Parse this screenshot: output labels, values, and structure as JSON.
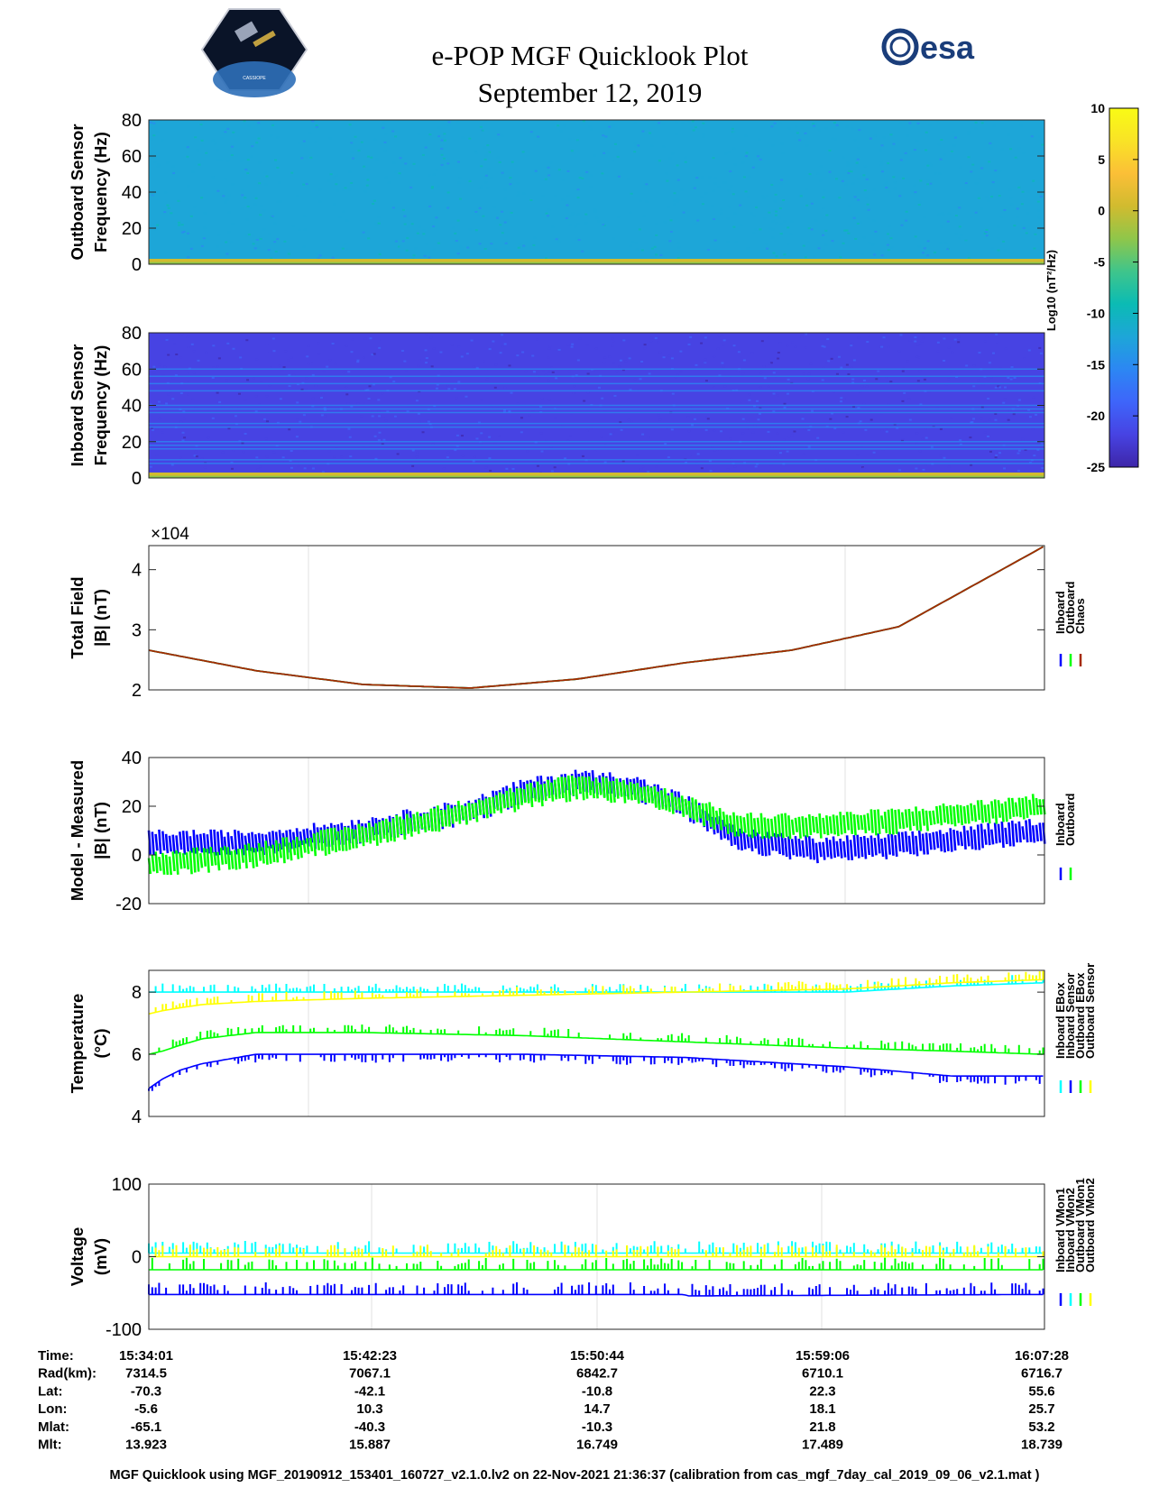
{
  "header": {
    "title": "e-POP MGF Quicklook Plot",
    "date": "September 12, 2019",
    "logo_right_text": "esa",
    "logo_left_caption": "CASSIOPE"
  },
  "colorbar": {
    "label_text": "Log10 (nT²/Hz)",
    "ticks": [
      10,
      5,
      0,
      -5,
      -10,
      -15,
      -20,
      -25
    ],
    "range": [
      -25,
      10
    ],
    "colormap": [
      "#3e26a8",
      "#4743e3",
      "#3e65fa",
      "#2c87f3",
      "#1da6d8",
      "#0bbbb4",
      "#3fc58b",
      "#8fc64a",
      "#d1bb2f",
      "#fbbf37",
      "#f9e326",
      "#f9fb15"
    ]
  },
  "footer": "MGF Quicklook using MGF_20190912_153401_160727_v2.1.0.lv2 on 22-Nov-2021 21:36:37 (calibration from cas_mgf_7day_cal_2019_09_06_v2.1.mat )",
  "ephemeris": {
    "rows": [
      {
        "label": "Time:",
        "values": [
          "15:34:01",
          "15:42:23",
          "15:50:44",
          "15:59:06",
          "16:07:28"
        ]
      },
      {
        "label": "Rad(km):",
        "values": [
          "7314.5",
          "7067.1",
          "6842.7",
          "6710.1",
          "6716.7"
        ]
      },
      {
        "label": "Lat:",
        "values": [
          "-70.3",
          "-42.1",
          "-10.8",
          "22.3",
          "55.6"
        ]
      },
      {
        "label": "Lon:",
        "values": [
          "-5.6",
          "10.3",
          "14.7",
          "18.1",
          "25.7"
        ]
      },
      {
        "label": "Mlat:",
        "values": [
          "-65.1",
          "-40.3",
          "-10.3",
          "21.8",
          "53.2"
        ]
      },
      {
        "label": "Mlt:",
        "values": [
          "13.923",
          "15.887",
          "16.749",
          "17.489",
          "18.739"
        ]
      }
    ]
  },
  "chart_data": [
    {
      "type": "heatmap",
      "id": "outboard-spectrogram",
      "ylabel": [
        "Outboard Sensor",
        "Frequency (Hz)"
      ],
      "yticks": [
        0,
        20,
        40,
        60,
        80
      ],
      "ylim": [
        0,
        80
      ],
      "base_level": -12,
      "low_band_level": 2,
      "lines_hz": []
    },
    {
      "type": "heatmap",
      "id": "inboard-spectrogram",
      "ylabel": [
        "Inboard Sensor",
        "Frequency (Hz)"
      ],
      "yticks": [
        0,
        20,
        40,
        60,
        80
      ],
      "ylim": [
        0,
        80
      ],
      "base_level": -21,
      "low_band_level": 2,
      "lines_hz": [
        8,
        10,
        16,
        18,
        20,
        28,
        30,
        36,
        38,
        40,
        48,
        52,
        56,
        60
      ]
    },
    {
      "type": "line",
      "id": "total-field",
      "ylabel": [
        "Total Field",
        "|B| (nT)"
      ],
      "multiplier": "×10^4",
      "yticks": [
        2,
        3,
        4
      ],
      "ylim": [
        2,
        4.4
      ],
      "x_minutes": [
        0,
        4,
        8,
        12,
        16,
        20,
        24,
        28,
        33.4
      ],
      "series": [
        {
          "name": "Inboard",
          "color": "#0000ff",
          "values": [
            2.66,
            2.32,
            2.09,
            2.03,
            2.18,
            2.45,
            2.66,
            3.05,
            4.38
          ]
        },
        {
          "name": "Outboard",
          "color": "#00ff00",
          "values": [
            2.66,
            2.32,
            2.09,
            2.03,
            2.18,
            2.45,
            2.66,
            3.05,
            4.38
          ]
        },
        {
          "name": "Chaos",
          "color": "#a52a00",
          "values": [
            2.66,
            2.32,
            2.09,
            2.03,
            2.18,
            2.45,
            2.66,
            3.05,
            4.38
          ]
        }
      ]
    },
    {
      "type": "line",
      "id": "model-minus-measured",
      "ylabel": [
        "Model - Measured",
        "|B| (nT)"
      ],
      "yticks": [
        -20,
        0,
        20,
        40
      ],
      "ylim": [
        -20,
        40
      ],
      "x_minutes": [
        0,
        4,
        8,
        12,
        14,
        16,
        18,
        20,
        22,
        25,
        28,
        33.4
      ],
      "series": [
        {
          "name": "Inboard",
          "color": "#0000ff",
          "spread": 8,
          "values": [
            5,
            5,
            10,
            18,
            26,
            30,
            28,
            20,
            6,
            2,
            4,
            10
          ]
        },
        {
          "name": "Outboard",
          "color": "#00ff00",
          "spread": 8,
          "values": [
            -4,
            0,
            8,
            18,
            24,
            28,
            26,
            20,
            12,
            12,
            14,
            20
          ]
        }
      ]
    },
    {
      "type": "line",
      "id": "temperature",
      "ylabel": [
        "Temperature",
        "(°C)"
      ],
      "yticks": [
        4,
        6,
        8
      ],
      "ylim": [
        4,
        8.7
      ],
      "x_minutes": [
        0,
        0.5,
        1.2,
        2,
        4,
        8,
        14,
        20,
        26,
        30,
        33.4
      ],
      "series": [
        {
          "name": "Inboard EBox",
          "color": "#00ffff",
          "values": [
            8.0,
            8.0,
            8.0,
            8.0,
            8.0,
            8.0,
            8.0,
            8.0,
            8.0,
            8.2,
            8.3
          ]
        },
        {
          "name": "Inboard Sensor",
          "color": "#0000ff",
          "values": [
            4.9,
            5.2,
            5.5,
            5.7,
            6.0,
            6.0,
            6.0,
            5.9,
            5.6,
            5.3,
            5.3
          ]
        },
        {
          "name": "Outboard EBox",
          "color": "#00ff00",
          "values": [
            6.0,
            6.1,
            6.3,
            6.5,
            6.7,
            6.7,
            6.6,
            6.4,
            6.2,
            6.1,
            6.0
          ]
        },
        {
          "name": "Outboard Sensor",
          "color": "#ffff00",
          "values": [
            7.3,
            7.4,
            7.5,
            7.6,
            7.7,
            7.8,
            7.9,
            8.0,
            8.1,
            8.3,
            8.4
          ]
        }
      ]
    },
    {
      "type": "line",
      "id": "voltage",
      "ylabel": [
        "Voltage",
        "(mV)"
      ],
      "yticks": [
        -100,
        0,
        100
      ],
      "ylim": [
        -100,
        100
      ],
      "x_minutes": [
        0,
        20,
        20.1,
        33.4
      ],
      "series": [
        {
          "name": "Inboard VMon1",
          "color": "#0000ff",
          "values": [
            -52,
            -52,
            -54,
            -52
          ]
        },
        {
          "name": "Inboard VMon2",
          "color": "#00ffff",
          "values": [
            5,
            5,
            5,
            5
          ]
        },
        {
          "name": "Outboard VMon1",
          "color": "#00ff00",
          "values": [
            -18,
            -18,
            -18,
            -18
          ]
        },
        {
          "name": "Outboard VMon2",
          "color": "#ffff00",
          "values": [
            0,
            0,
            0,
            0
          ]
        }
      ]
    }
  ]
}
